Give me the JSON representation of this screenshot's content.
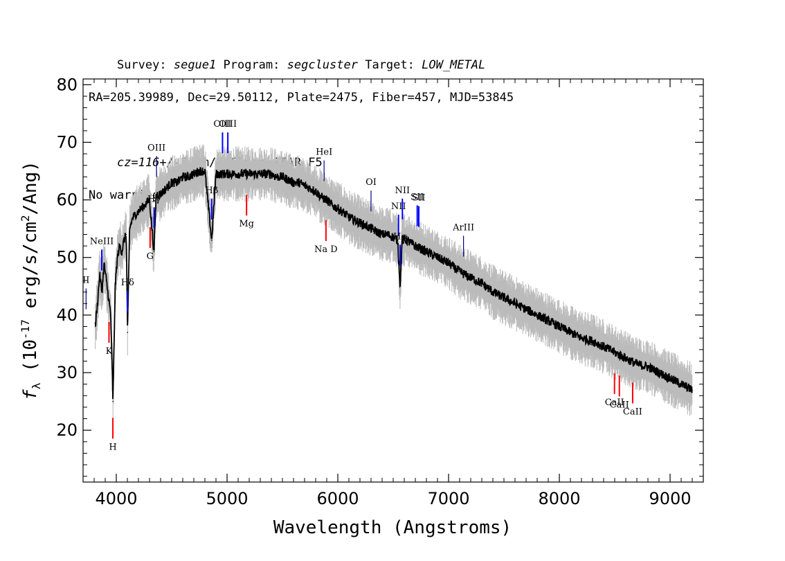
{
  "header": {
    "line1": [
      {
        "text": "Survey: ",
        "italic": false
      },
      {
        "text": "segue1",
        "italic": true
      },
      {
        "text": " Program: ",
        "italic": false
      },
      {
        "text": "segcluster",
        "italic": true
      },
      {
        "text": " Target: ",
        "italic": false
      },
      {
        "text": "LOW_METAL",
        "italic": true
      }
    ],
    "line2": "RA=205.39989, Dec=29.50112, Plate=2475, Fiber=457, MJD=53845",
    "line3": [
      {
        "text": "cz=116+/-7",
        "italic": true
      },
      {
        "text": " km/s Class=STAR F5",
        "italic": false
      }
    ],
    "line4": "No warnings."
  },
  "chart_data": {
    "type": "line",
    "xlabel": "Wavelength (Angstroms)",
    "ylabel": "f_λ (10^-17 erg/s/cm^2/Ang)",
    "xlim": [
      3700,
      9300
    ],
    "ylim": [
      11,
      81
    ],
    "x_ticks": [
      4000,
      5000,
      6000,
      7000,
      8000,
      9000
    ],
    "y_ticks": [
      20,
      30,
      40,
      50,
      60,
      70,
      80
    ],
    "colors": {
      "flux": "#000000",
      "error_band": "#bbbbbb",
      "emission": "#0000ff",
      "absorption": "#ff0000",
      "telluric": "#000080"
    },
    "series": [
      {
        "name": "",
        "x": [
          3810,
          3830,
          3850,
          3870,
          3890,
          3910,
          3930,
          3950,
          3970,
          3990,
          4010,
          4030,
          4050,
          4070,
          4090,
          4102,
          4120,
          4150,
          4200,
          4250,
          4300,
          4340,
          4360,
          4400,
          4450,
          4500,
          4550,
          4600,
          4650,
          4700,
          4750,
          4800,
          4861,
          4900,
          4950,
          5000,
          5050,
          5100,
          5150,
          5200,
          5250,
          5300,
          5350,
          5400,
          5450,
          5500,
          5550,
          5600,
          5650,
          5700,
          5750,
          5800,
          5850,
          5900,
          5950,
          6000,
          6050,
          6100,
          6150,
          6200,
          6250,
          6300,
          6350,
          6400,
          6450,
          6500,
          6540,
          6563,
          6580,
          6620,
          6700,
          6800,
          6900,
          7000,
          7100,
          7200,
          7300,
          7400,
          7500,
          7600,
          7700,
          7800,
          7900,
          8000,
          8100,
          8200,
          8300,
          8400,
          8500,
          8600,
          8700,
          8800,
          8900,
          9000,
          9100,
          9200
        ],
        "values": [
          38,
          42,
          47,
          44,
          49,
          46,
          43,
          40,
          25,
          45,
          50,
          52,
          51,
          53,
          54,
          37,
          55,
          57,
          58,
          59,
          60,
          51,
          61,
          61,
          62,
          63,
          63,
          64,
          64,
          64.5,
          65,
          65,
          53,
          64.5,
          64.5,
          64.5,
          64.5,
          64.5,
          64.5,
          64.5,
          64.5,
          64.5,
          64.5,
          64.5,
          64,
          64,
          63.5,
          63,
          63,
          62.5,
          62,
          61.5,
          60.5,
          60,
          59,
          58.5,
          57.8,
          57,
          56.5,
          56,
          55.5,
          55,
          54.5,
          54,
          54,
          53.5,
          53,
          45,
          53,
          53,
          52,
          51,
          50,
          49,
          47.5,
          46.5,
          45.5,
          44,
          43,
          42,
          41,
          40,
          39,
          38,
          37,
          36,
          35.5,
          34.5,
          33.5,
          32.5,
          31.5,
          31,
          30,
          29,
          28,
          27
        ]
      }
    ],
    "line_markers": [
      {
        "label": "NeIII",
        "x": 3869,
        "kind": "emission"
      },
      {
        "label": "Hδ",
        "x": 4102,
        "kind": "emission"
      },
      {
        "label": "Hγ",
        "x": 4341,
        "kind": "emission"
      },
      {
        "label": "OIII",
        "x": 4363,
        "kind": "telluric"
      },
      {
        "label": "Hβ",
        "x": 4861,
        "kind": "emission"
      },
      {
        "label": "OIII",
        "x": 4959,
        "kind": "emission"
      },
      {
        "label": "OIII",
        "x": 5007,
        "kind": "emission"
      },
      {
        "label": "HeI",
        "x": 5876,
        "kind": "telluric"
      },
      {
        "label": "OI",
        "x": 6300,
        "kind": "telluric"
      },
      {
        "label": "NII",
        "x": 6548,
        "kind": "emission"
      },
      {
        "label": "Hα",
        "x": 6563,
        "kind": "emission"
      },
      {
        "label": "NII",
        "x": 6583,
        "kind": "emission"
      },
      {
        "label": "SII",
        "x": 6717,
        "kind": "emission"
      },
      {
        "label": "SII",
        "x": 6731,
        "kind": "emission"
      },
      {
        "label": "ArIII",
        "x": 7135,
        "kind": "telluric"
      },
      {
        "label": "G",
        "x": 4305,
        "kind": "absorption"
      },
      {
        "label": "Mg",
        "x": 5176,
        "kind": "absorption"
      },
      {
        "label": "Na D",
        "x": 5893,
        "kind": "absorption"
      },
      {
        "label": "K",
        "x": 3934,
        "kind": "absorption"
      },
      {
        "label": "H",
        "x": 3969,
        "kind": "absorption"
      },
      {
        "label": "CaII",
        "x": 8498,
        "kind": "absorption"
      },
      {
        "label": "CaII",
        "x": 8542,
        "kind": "absorption"
      },
      {
        "label": "CaII",
        "x": 8662,
        "kind": "absorption"
      },
      {
        "label": "II",
        "x": 3727,
        "kind": "telluric"
      }
    ]
  }
}
